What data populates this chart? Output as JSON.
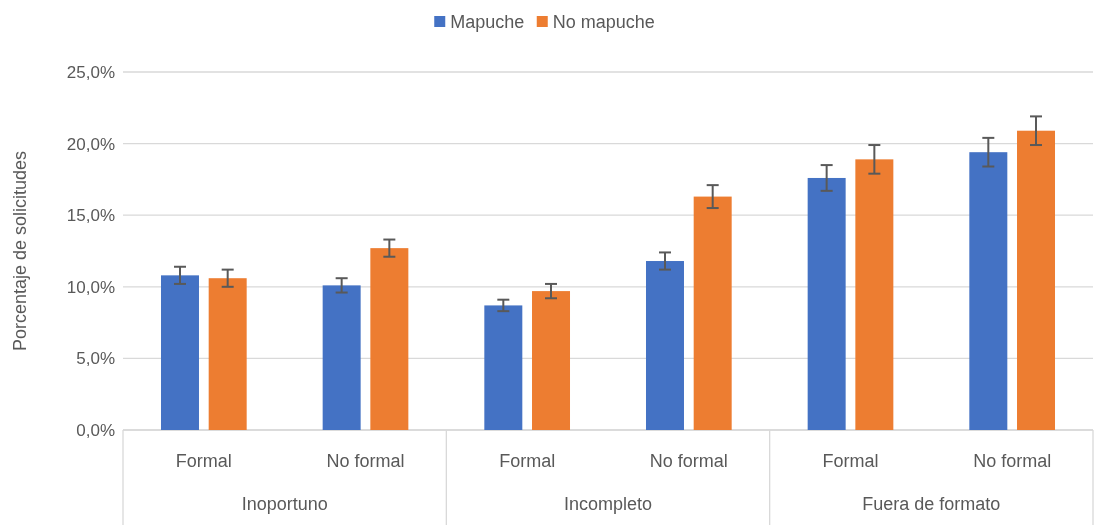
{
  "chart_data": {
    "type": "bar",
    "ylabel": "Porcentaje de solicitudes",
    "categories": [
      "Formal",
      "No formal",
      "Formal",
      "No formal",
      "Formal",
      "No formal"
    ],
    "annotations": [
      "Inoportuno",
      "Incompleto",
      "Fuera de formato"
    ],
    "series": [
      {
        "name": "Mapuche",
        "color": "#4472c4",
        "values": [
          10.8,
          10.1,
          8.7,
          11.8,
          17.6,
          19.4
        ],
        "errors": [
          0.6,
          0.5,
          0.4,
          0.6,
          0.9,
          1.0
        ]
      },
      {
        "name": "No mapuche",
        "color": "#ed7d31",
        "values": [
          10.6,
          12.7,
          9.7,
          16.3,
          18.9,
          20.9
        ],
        "errors": [
          0.6,
          0.6,
          0.5,
          0.8,
          1.0,
          1.0
        ]
      }
    ],
    "ylim": [
      0,
      25
    ],
    "yticks": [
      {
        "value": 0,
        "label": "0,0%"
      },
      {
        "value": 5,
        "label": "5,0%"
      },
      {
        "value": 10,
        "label": "10,0%"
      },
      {
        "value": 15,
        "label": "15,0%"
      },
      {
        "value": 20,
        "label": "20,0%"
      },
      {
        "value": 25,
        "label": "25,0%"
      }
    ],
    "grid": "y",
    "legend": "top"
  }
}
